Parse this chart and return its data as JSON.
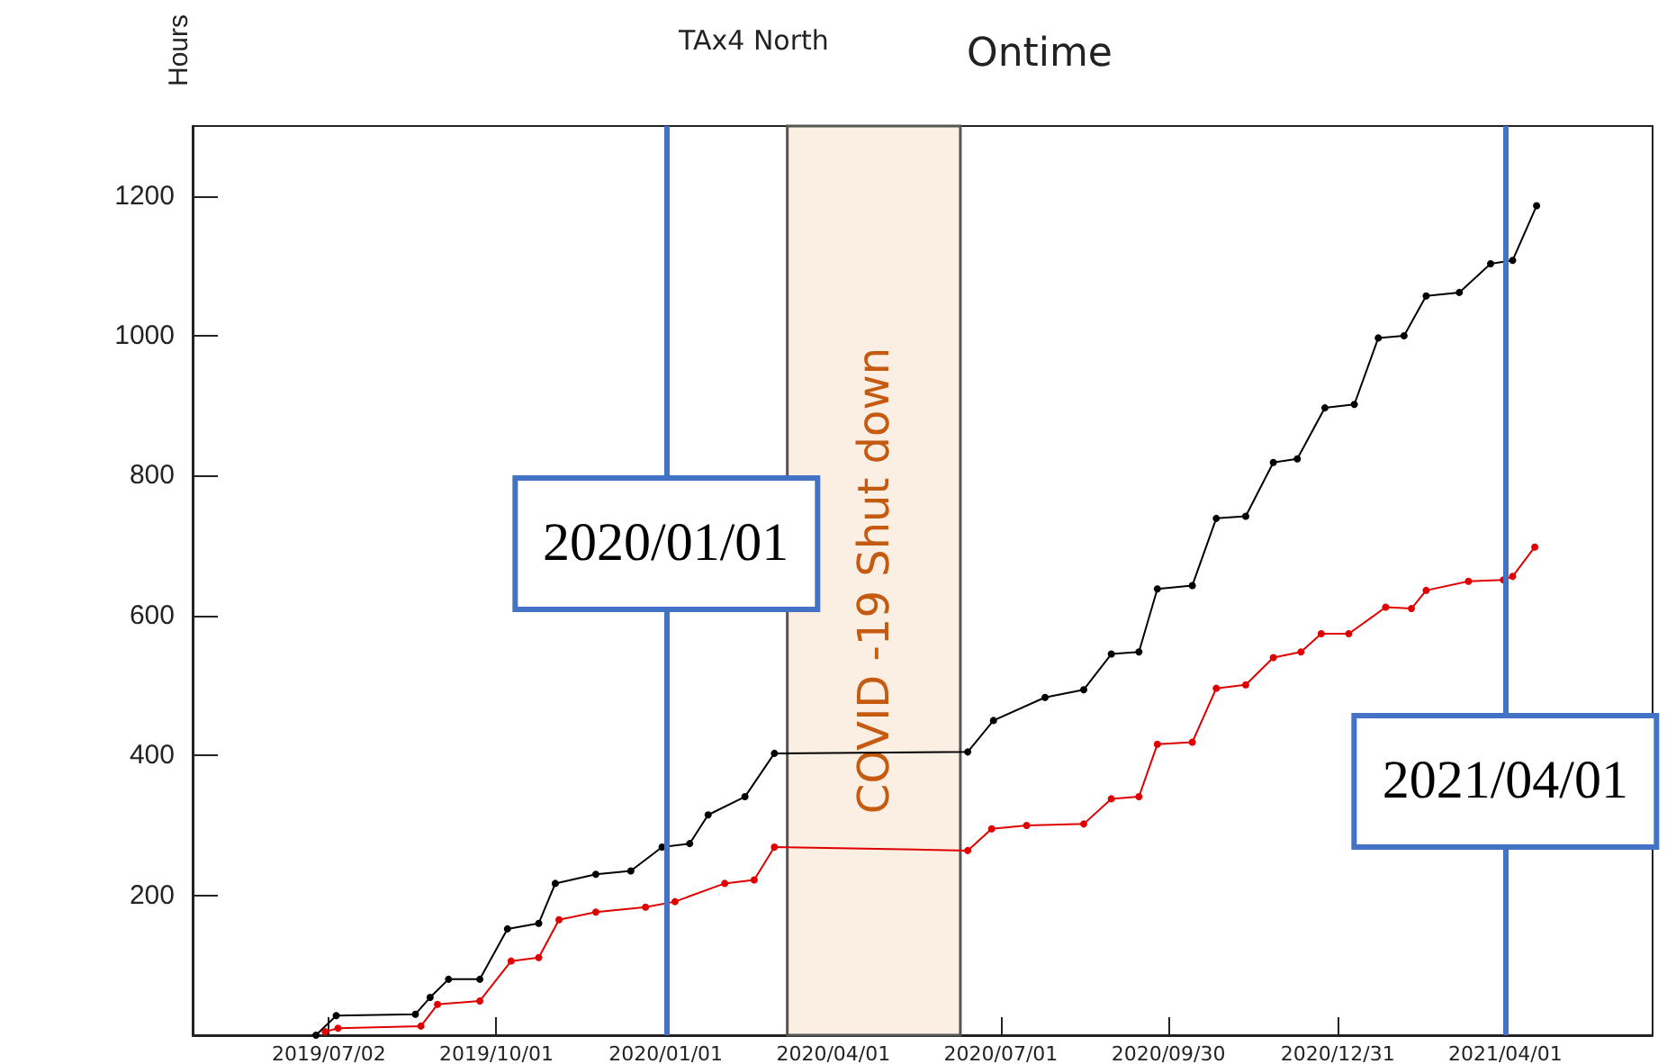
{
  "chart_data": {
    "type": "line",
    "title": "Ontime",
    "annotations": [
      "TAx4 North"
    ],
    "ylabel": "Hours",
    "xlim": [
      "2019-04-19",
      "2021-06-20"
    ],
    "xticks": [
      {
        "value": "2019-07-02",
        "label": "2019/07/02"
      },
      {
        "value": "2019-10-01",
        "label": "2019/10/01"
      },
      {
        "value": "2020-01-01",
        "label": "2020/01/01"
      },
      {
        "value": "2020-04-01",
        "label": "2020/04/01"
      },
      {
        "value": "2020-07-01",
        "label": "2020/07/01"
      },
      {
        "value": "2020-09-30",
        "label": "2020/09/30"
      },
      {
        "value": "2020-12-31",
        "label": "2020/12/31"
      },
      {
        "value": "2021-04-01",
        "label": "2021/04/01"
      }
    ],
    "ylim": [
      0,
      1300
    ],
    "yticks": [
      200,
      400,
      600,
      800,
      1000,
      1200
    ],
    "grid": false,
    "marker": "circle",
    "line_style": "solid",
    "ref_lines": [
      {
        "axis": "x",
        "value": "2020-01-01",
        "label": "2020/01/01",
        "color": "#4472c4"
      },
      {
        "axis": "x",
        "value": "2021-04-01",
        "label": "2021/04/01",
        "color": "#4472c4"
      }
    ],
    "bands": [
      {
        "axis": "x",
        "from": "2020-03-07",
        "to": "2020-06-09",
        "label": "COVID -19 Shut down",
        "color": "#fbeee2"
      }
    ],
    "series": [
      {
        "color": "#000000",
        "x": [
          "2019-06-25",
          "2019-07-06",
          "2019-08-18",
          "2019-08-26",
          "2019-09-05",
          "2019-09-22",
          "2019-10-07",
          "2019-10-24",
          "2019-11-02",
          "2019-11-24",
          "2019-12-13",
          "2019-12-30",
          "2020-01-14",
          "2020-01-24",
          "2020-02-13",
          "2020-02-29",
          "2020-06-13",
          "2020-06-27",
          "2020-07-25",
          "2020-08-15",
          "2020-08-30",
          "2020-09-14",
          "2020-09-24",
          "2020-10-13",
          "2020-10-26",
          "2020-11-11",
          "2020-11-26",
          "2020-12-09",
          "2020-12-24",
          "2021-01-09",
          "2021-01-22",
          "2021-02-05",
          "2021-02-17",
          "2021-03-07",
          "2021-03-24",
          "2021-04-05",
          "2021-04-18"
        ],
        "values": [
          0,
          28,
          30,
          54,
          80,
          80,
          152,
          160,
          217,
          230,
          235,
          269,
          274,
          315,
          341,
          403,
          405,
          450,
          483,
          494,
          545,
          548,
          638,
          643,
          739,
          742,
          819,
          824,
          897,
          902,
          997,
          1000,
          1057,
          1062,
          1103,
          1108,
          1186
        ]
      },
      {
        "color": "#e00000",
        "x": [
          "2019-06-30",
          "2019-07-07",
          "2019-08-21",
          "2019-08-30",
          "2019-09-22",
          "2019-10-09",
          "2019-10-24",
          "2019-11-04",
          "2019-11-24",
          "2019-12-21",
          "2020-01-06",
          "2020-02-02",
          "2020-02-18",
          "2020-02-29",
          "2020-06-13",
          "2020-06-26",
          "2020-07-15",
          "2020-08-15",
          "2020-08-30",
          "2020-09-14",
          "2020-09-24",
          "2020-10-13",
          "2020-10-26",
          "2020-11-11",
          "2020-11-26",
          "2020-12-11",
          "2020-12-22",
          "2021-01-06",
          "2021-01-26",
          "2021-02-09",
          "2021-02-17",
          "2021-03-12",
          "2021-03-31",
          "2021-04-05",
          "2021-04-17"
        ],
        "values": [
          5,
          10,
          13,
          44,
          49,
          106,
          111,
          165,
          176,
          183,
          191,
          217,
          222,
          269,
          264,
          295,
          300,
          302,
          338,
          341,
          416,
          419,
          496,
          501,
          540,
          548,
          574,
          574,
          612,
          610,
          636,
          649,
          651,
          656,
          698
        ]
      }
    ]
  }
}
